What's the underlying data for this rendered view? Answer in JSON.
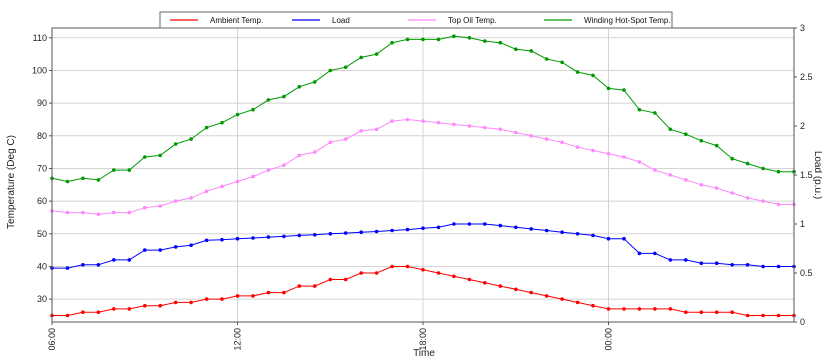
{
  "chart_data": {
    "type": "line",
    "xlabel": "Time",
    "ylabel_left": "Temperature (Deg C)",
    "ylabel_right": "Load (p.u.)",
    "x_tick_labels": [
      "06:00",
      "12:00",
      "18:00",
      "00:00"
    ],
    "x_tick_hours": [
      0,
      6,
      12,
      18
    ],
    "x_range_hours": [
      0,
      24
    ],
    "y_left_ticks": [
      30,
      40,
      50,
      60,
      70,
      80,
      90,
      100,
      110
    ],
    "y_left_range": [
      23,
      113
    ],
    "y_right_ticks": [
      0,
      0.5,
      1,
      1.5,
      2,
      2.5,
      3
    ],
    "y_right_range": [
      0,
      3
    ],
    "grid": true,
    "legend_position": "top",
    "x_hours": [
      0,
      0.5,
      1,
      1.5,
      2,
      2.5,
      3,
      3.5,
      4,
      4.5,
      5,
      5.5,
      6,
      6.5,
      7,
      7.5,
      8,
      8.5,
      9,
      9.5,
      10,
      10.5,
      11,
      11.5,
      12,
      12.5,
      13,
      13.5,
      14,
      14.5,
      15,
      15.5,
      16,
      16.5,
      17,
      17.5,
      18,
      18.5,
      19,
      19.5,
      20,
      20.5,
      21,
      21.5,
      22,
      22.5,
      23,
      23.5,
      24
    ],
    "series": [
      {
        "name": "Ambient Temp.",
        "axis": "left",
        "color": "#ff0000",
        "values": [
          25,
          25,
          26,
          26,
          27,
          27,
          28,
          28,
          29,
          29,
          30,
          30,
          31,
          31,
          32,
          32,
          34,
          34,
          36,
          36,
          38,
          38,
          40,
          40,
          39,
          38,
          37,
          36,
          35,
          34,
          33,
          32,
          31,
          30,
          29,
          28,
          27,
          27,
          27,
          27,
          27,
          26,
          26,
          26,
          26,
          25,
          25,
          25,
          25
        ]
      },
      {
        "name": "Load",
        "axis": "left",
        "color": "#0000ff",
        "values": [
          39.5,
          39.5,
          40.5,
          40.5,
          42,
          42,
          45,
          45,
          46,
          46.5,
          48,
          48.2,
          48.5,
          48.7,
          49,
          49.2,
          49.5,
          49.7,
          50,
          50.2,
          50.5,
          50.7,
          51,
          51.3,
          51.7,
          52,
          53,
          53,
          53,
          52.5,
          52,
          51.5,
          51,
          50.5,
          50,
          49.5,
          48.5,
          48.5,
          44,
          44,
          42,
          42,
          41,
          41,
          40.5,
          40.5,
          40,
          40,
          40
        ]
      },
      {
        "name": "Top Oil Temp.",
        "axis": "left",
        "color": "#ff88ff",
        "values": [
          57,
          56.5,
          56.5,
          56,
          56.5,
          56.5,
          58,
          58.5,
          60,
          61,
          63,
          64.5,
          66,
          67.5,
          69.5,
          71,
          74,
          75,
          78,
          79,
          81.5,
          82,
          84.5,
          85,
          84.5,
          84,
          83.5,
          83,
          82.5,
          82,
          81,
          80,
          79,
          78,
          76.5,
          75.5,
          74.5,
          73.5,
          72,
          69.5,
          68,
          66.5,
          65,
          64,
          62.5,
          61,
          60,
          59,
          59
        ]
      },
      {
        "name": "Winding Hot-Spot Temp.",
        "axis": "left",
        "color": "#009900",
        "values": [
          67,
          66,
          67,
          66.5,
          69.5,
          69.5,
          73.5,
          74,
          77.5,
          79,
          82.5,
          84,
          86.5,
          88,
          91,
          92,
          95,
          96.5,
          100,
          101,
          104,
          105,
          108.5,
          109.5,
          109.5,
          109.5,
          110.5,
          110,
          109,
          108.5,
          106.5,
          106,
          103.5,
          102.5,
          99.5,
          98.5,
          94.5,
          94,
          88,
          87,
          82,
          80.5,
          78.5,
          77,
          73,
          71.5,
          70,
          69,
          69
        ]
      }
    ]
  }
}
